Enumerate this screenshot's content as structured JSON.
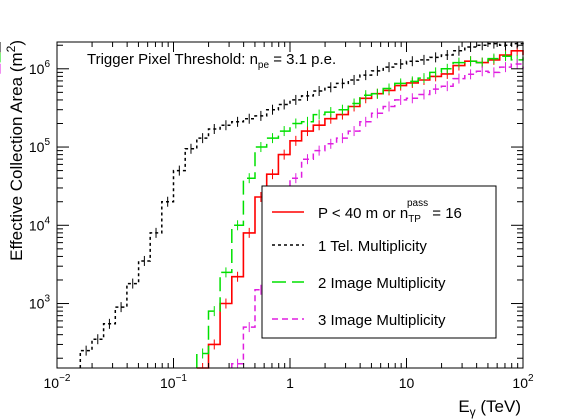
{
  "chart_data": {
    "type": "line",
    "title": "Trigger Pixel Threshold: n_pe = 3.1 p.e.",
    "annotation": {
      "text": "Trigger Pixel Threshold: n",
      "sub": "pe",
      "after": " = 3.1 p.e."
    },
    "xlabel": {
      "main": "E",
      "sub": "γ",
      "after": " (TeV)"
    },
    "ylabel": {
      "main": "Effective Collection Area (m",
      "sup": "2",
      "after": ")"
    },
    "xscale": "log",
    "yscale": "log",
    "xlim": [
      0.01,
      100
    ],
    "ylim": [
      150,
      2200000
    ],
    "x_ticks": [
      {
        "value": 0.01,
        "base": "10",
        "exp": "−2"
      },
      {
        "value": 0.1,
        "base": "10",
        "exp": "−1"
      },
      {
        "value": 1,
        "base": "1",
        "exp": ""
      },
      {
        "value": 10,
        "base": "10",
        "exp": ""
      },
      {
        "value": 100,
        "base": "10",
        "exp": "2"
      }
    ],
    "y_ticks": [
      {
        "value": 1000,
        "base": "10",
        "exp": "3"
      },
      {
        "value": 10000,
        "base": "10",
        "exp": "4"
      },
      {
        "value": 100000,
        "base": "10",
        "exp": "5"
      },
      {
        "value": 1000000,
        "base": "10",
        "exp": "6"
      }
    ],
    "grid": false,
    "legend_position": "center-right",
    "bin_edges_log10": [
      -2.0,
      -1.9,
      -1.8,
      -1.7,
      -1.6,
      -1.5,
      -1.4,
      -1.3,
      -1.2,
      -1.1,
      -1.0,
      -0.9,
      -0.8,
      -0.7,
      -0.6,
      -0.5,
      -0.4,
      -0.3,
      -0.2,
      -0.1,
      0.0,
      0.1,
      0.2,
      0.3,
      0.4,
      0.5,
      0.6,
      0.7,
      0.8,
      0.9,
      1.0,
      1.1,
      1.2,
      1.3,
      1.4,
      1.5,
      1.6,
      1.7,
      1.8,
      1.9,
      2.0
    ],
    "series": [
      {
        "name": "P < 40 m or n_TP^pass = 16",
        "legend": {
          "text": "P < 40 m or n",
          "sub": "TP",
          "sup": "pass",
          "after": " = 16"
        },
        "color": "#ff0000",
        "dash": "",
        "values": [
          null,
          null,
          null,
          null,
          null,
          null,
          null,
          null,
          null,
          null,
          null,
          null,
          150,
          300,
          1000,
          2200,
          8000,
          23000,
          45000,
          80000,
          120000,
          160000,
          190000,
          230000,
          260000,
          330000,
          420000,
          480000,
          530000,
          610000,
          660000,
          720000,
          800000,
          860000,
          1100000,
          1250000,
          1200000,
          1300000,
          1500000,
          1700000,
          1500000
        ]
      },
      {
        "name": "1 Tel. Multiplicity",
        "color": "#000000",
        "dash": "3,3",
        "values": [
          null,
          null,
          250,
          350,
          550,
          900,
          1800,
          3500,
          8000,
          20000,
          50000,
          95000,
          130000,
          170000,
          190000,
          210000,
          230000,
          250000,
          300000,
          350000,
          400000,
          450000,
          520000,
          580000,
          650000,
          720000,
          830000,
          940000,
          1050000,
          1150000,
          1250000,
          1300000,
          1400000,
          1500000,
          1700000,
          1900000,
          2000000,
          2100000,
          2000000,
          2100000,
          1900000
        ]
      },
      {
        "name": "2 Image Multiplicity",
        "color": "#00e000",
        "dash": "14,6",
        "values": [
          null,
          null,
          null,
          null,
          null,
          null,
          null,
          null,
          null,
          null,
          null,
          null,
          230,
          800,
          2500,
          10000,
          40000,
          100000,
          130000,
          160000,
          200000,
          210000,
          260000,
          280000,
          300000,
          360000,
          460000,
          480000,
          560000,
          650000,
          690000,
          760000,
          900000,
          1000000,
          1200000,
          1250000,
          1200000,
          1350000,
          1450000,
          1300000,
          1400000
        ]
      },
      {
        "name": "3 Image Multiplicity",
        "color": "#e01ee0",
        "dash": "6,4",
        "values": [
          null,
          null,
          null,
          null,
          null,
          null,
          null,
          null,
          null,
          null,
          null,
          null,
          null,
          null,
          null,
          170,
          500,
          1500,
          6500,
          18000,
          40000,
          70000,
          90000,
          110000,
          130000,
          160000,
          210000,
          270000,
          330000,
          400000,
          420000,
          470000,
          550000,
          600000,
          750000,
          850000,
          930000,
          900000,
          1050000,
          1150000,
          1000000
        ]
      }
    ]
  }
}
